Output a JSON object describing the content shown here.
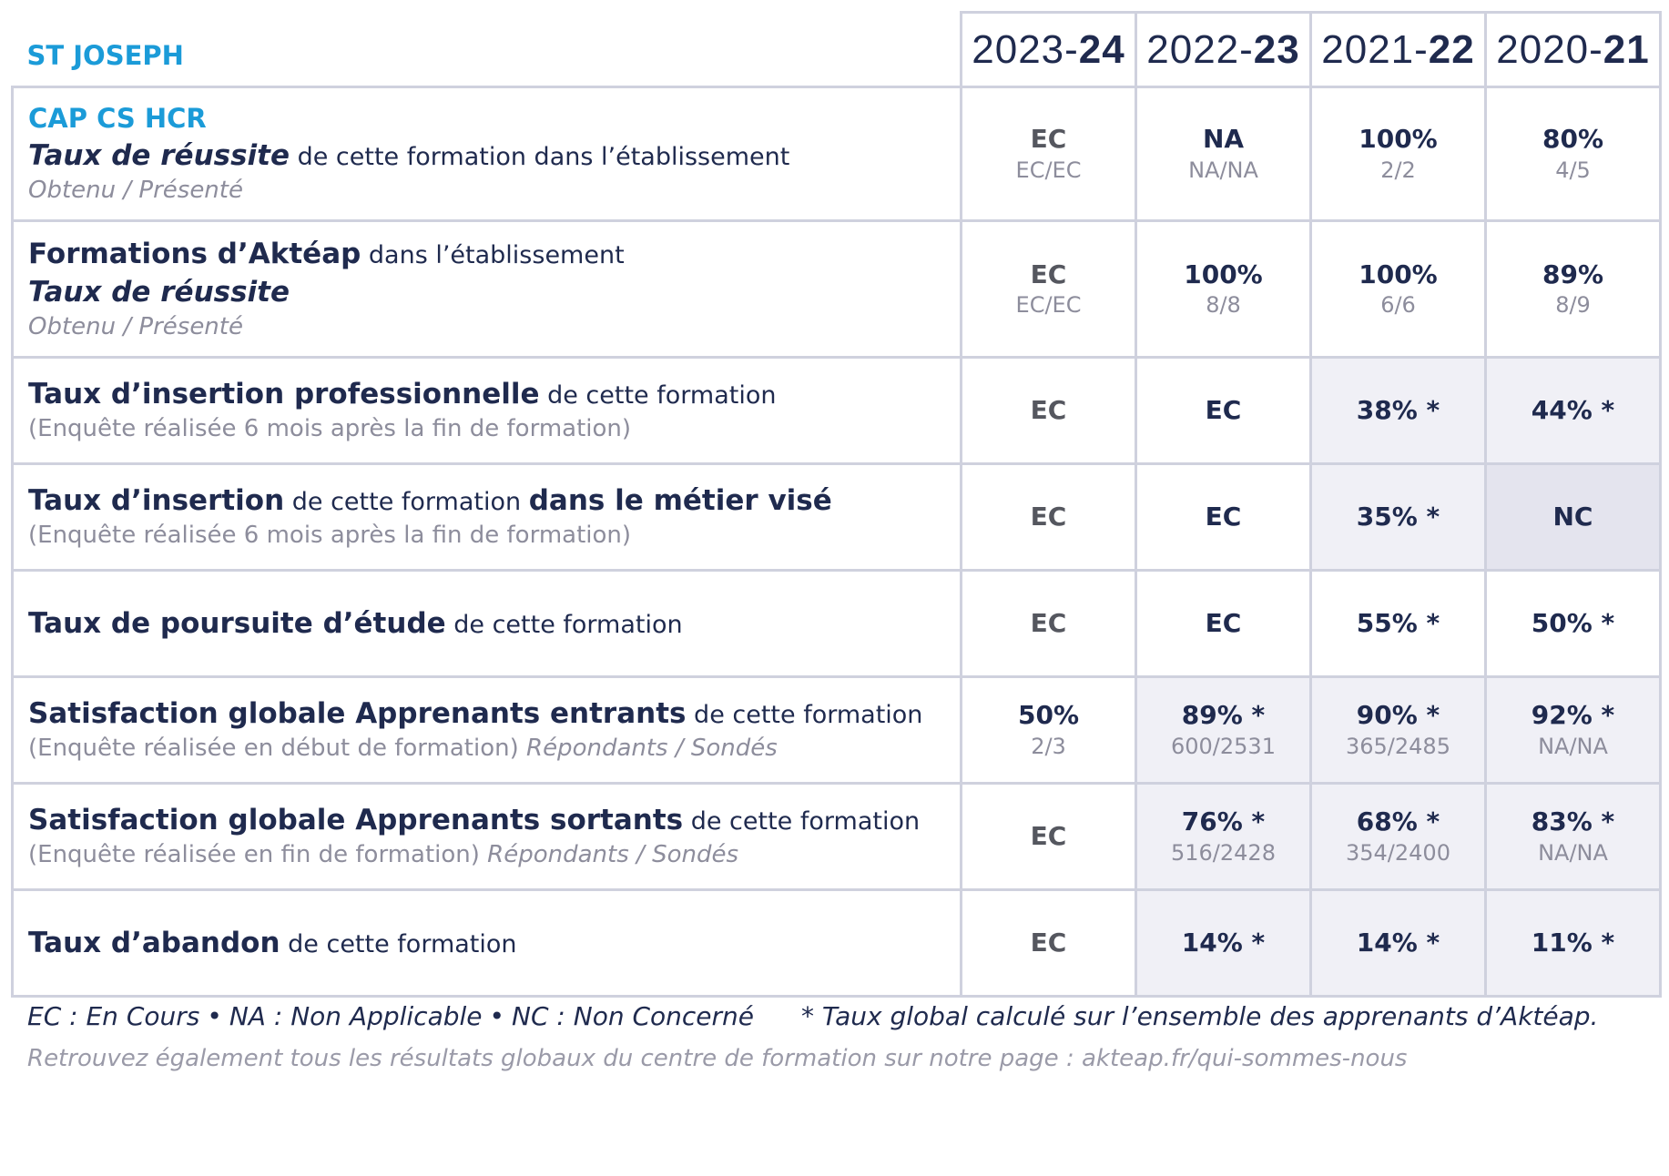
{
  "header": {
    "school": "ST JOSEPH",
    "years": [
      {
        "prefix": "2023-",
        "suffix": "24"
      },
      {
        "prefix": "2022-",
        "suffix": "23"
      },
      {
        "prefix": "2021-",
        "suffix": "22"
      },
      {
        "prefix": "2020-",
        "suffix": "21"
      }
    ]
  },
  "rows": [
    {
      "program": "CAP CS HCR",
      "title_bold": "Taux de réussite",
      "title_rest": " de cette formation dans l’établissement",
      "sub": "Obtenu / Présenté",
      "values": [
        {
          "main": "EC",
          "frac": "EC/EC"
        },
        {
          "main": "NA",
          "frac": "NA/NA"
        },
        {
          "main": "100%",
          "frac": "2/2"
        },
        {
          "main": "80%",
          "frac": "4/5"
        }
      ]
    },
    {
      "title_bold": "Formations d’Aktéap",
      "title_rest": " dans l’établissement",
      "title2": "Taux de réussite",
      "sub": "Obtenu / Présenté",
      "values": [
        {
          "main": "EC",
          "frac": "EC/EC"
        },
        {
          "main": "100%",
          "frac": "8/8"
        },
        {
          "main": "100%",
          "frac": "6/6"
        },
        {
          "main": "89%",
          "frac": "8/9"
        }
      ]
    },
    {
      "title_bold": "Taux d’insertion professionnelle",
      "title_rest": " de cette formation",
      "sub": "(Enquête réalisée 6 mois après la fin de formation)",
      "values": [
        {
          "main": "EC"
        },
        {
          "main": "EC"
        },
        {
          "main": "38% *"
        },
        {
          "main": "44% *"
        }
      ]
    },
    {
      "title_bold": "Taux d’insertion",
      "title_rest": " de cette formation ",
      "title_bold2": "dans le métier visé",
      "sub": "(Enquête réalisée 6 mois après la fin de formation)",
      "values": [
        {
          "main": "EC"
        },
        {
          "main": "EC"
        },
        {
          "main": "35% *"
        },
        {
          "main": "NC"
        }
      ]
    },
    {
      "title_bold": "Taux de poursuite d’étude",
      "title_rest": " de cette formation",
      "values": [
        {
          "main": "EC"
        },
        {
          "main": "EC"
        },
        {
          "main": "55% *"
        },
        {
          "main": "50% *"
        }
      ]
    },
    {
      "title_bold": "Satisfaction globale Apprenants entrants",
      "title_rest": " de cette formation",
      "sub": "(Enquête réalisée en début de formation)",
      "sub_italic": " Répondants / Sondés",
      "values": [
        {
          "main": "50%",
          "frac": "2/3"
        },
        {
          "main": "89% *",
          "frac": "600/2531"
        },
        {
          "main": "90% *",
          "frac": "365/2485"
        },
        {
          "main": "92% *",
          "frac": "NA/NA"
        }
      ]
    },
    {
      "title_bold": "Satisfaction globale Apprenants sortants",
      "title_rest": " de cette formation",
      "sub": "(Enquête réalisée en fin de formation)",
      "sub_italic": " Répondants / Sondés",
      "values": [
        {
          "main": "EC"
        },
        {
          "main": "76% *",
          "frac": "516/2428"
        },
        {
          "main": "68% *",
          "frac": "354/2400"
        },
        {
          "main": "83% *",
          "frac": "NA/NA"
        }
      ]
    },
    {
      "title_bold": "Taux d’abandon",
      "title_rest": " de cette formation",
      "values": [
        {
          "main": "EC"
        },
        {
          "main": "14% *"
        },
        {
          "main": "14% *"
        },
        {
          "main": "11% *"
        }
      ]
    }
  ],
  "legend": {
    "ec": "EC : En Cours",
    "sep": "•",
    "na": "NA : Non Applicable",
    "nc": "NC : Non Concerné",
    "note": "* Taux global calculé sur l’ensemble des apprenants d’Aktéap."
  },
  "footer": {
    "site_text": "Retrouvez également tous les résultats globaux du centre de formation sur notre page : akteap.fr/qui-sommes-nous"
  },
  "colors": {
    "accent_blue": "#1b9bd8",
    "navy": "#1f2a4e",
    "grey_text": "#8d8d9c",
    "cell_shade": "#f0f0f6",
    "border": "#cfd1de"
  }
}
